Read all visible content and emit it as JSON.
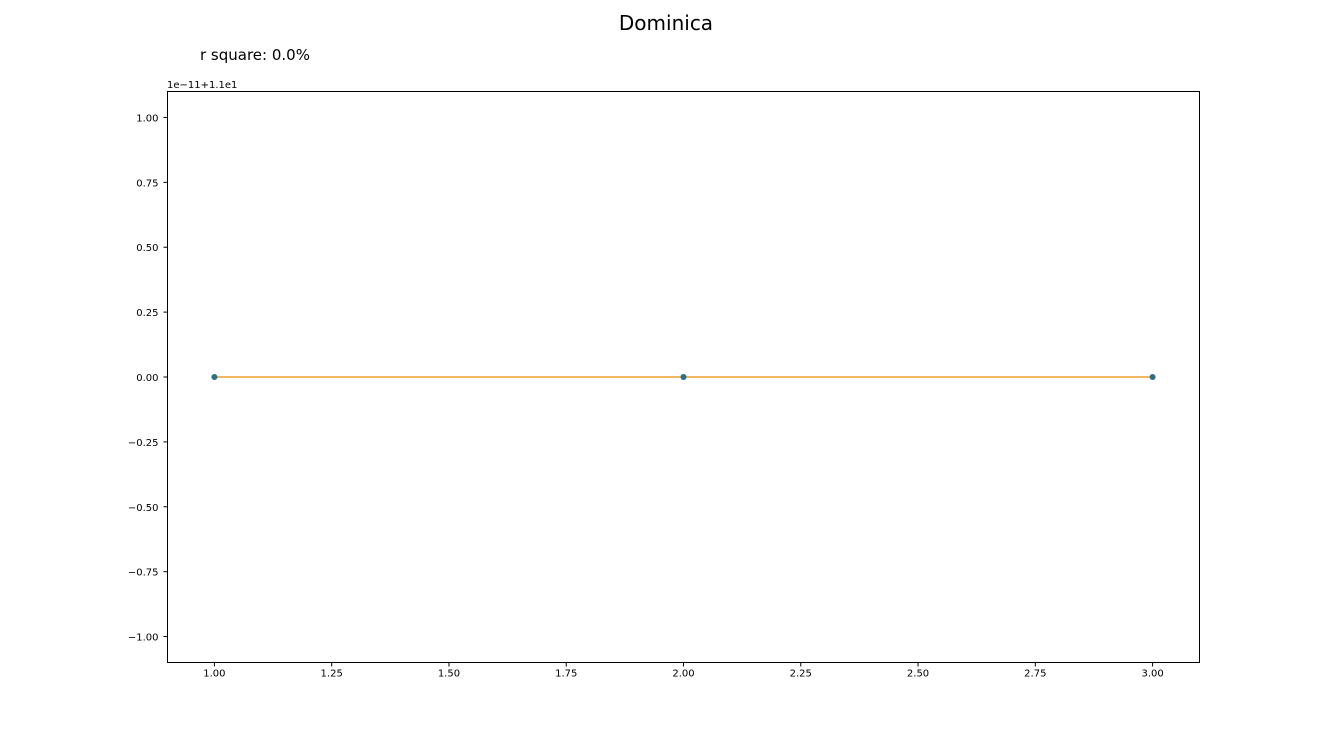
{
  "chart_data": {
    "type": "scatter",
    "title": "Dominica",
    "subtitle": "r square: 0.0%",
    "offset_label": "1e−11+1.1e1",
    "xlabel": "",
    "ylabel": "",
    "xlim": [
      0.9,
      3.1
    ],
    "ylim": [
      -1.1,
      1.1
    ],
    "x_ticks": [
      1.0,
      1.25,
      1.5,
      1.75,
      2.0,
      2.25,
      2.5,
      2.75,
      3.0
    ],
    "x_tick_labels": [
      "1.00",
      "1.25",
      "1.50",
      "1.75",
      "2.00",
      "2.25",
      "2.50",
      "2.75",
      "3.00"
    ],
    "y_ticks": [
      1.0,
      0.75,
      0.5,
      0.25,
      0.0,
      -0.25,
      -0.5,
      -0.75,
      -1.0
    ],
    "y_tick_labels": [
      "1.00",
      "0.75",
      "0.50",
      "0.25",
      "0.00",
      "−0.25",
      "−0.50",
      "−0.75",
      "−1.00"
    ],
    "grid": false,
    "series": [
      {
        "kind": "scatter",
        "color": "#2b6f8a",
        "x": [
          1,
          2,
          3
        ],
        "y": [
          0.0,
          0.0,
          0.0
        ]
      },
      {
        "kind": "line",
        "color": "#f0a030",
        "x": [
          1,
          3
        ],
        "y": [
          0.0,
          0.0
        ]
      }
    ]
  }
}
